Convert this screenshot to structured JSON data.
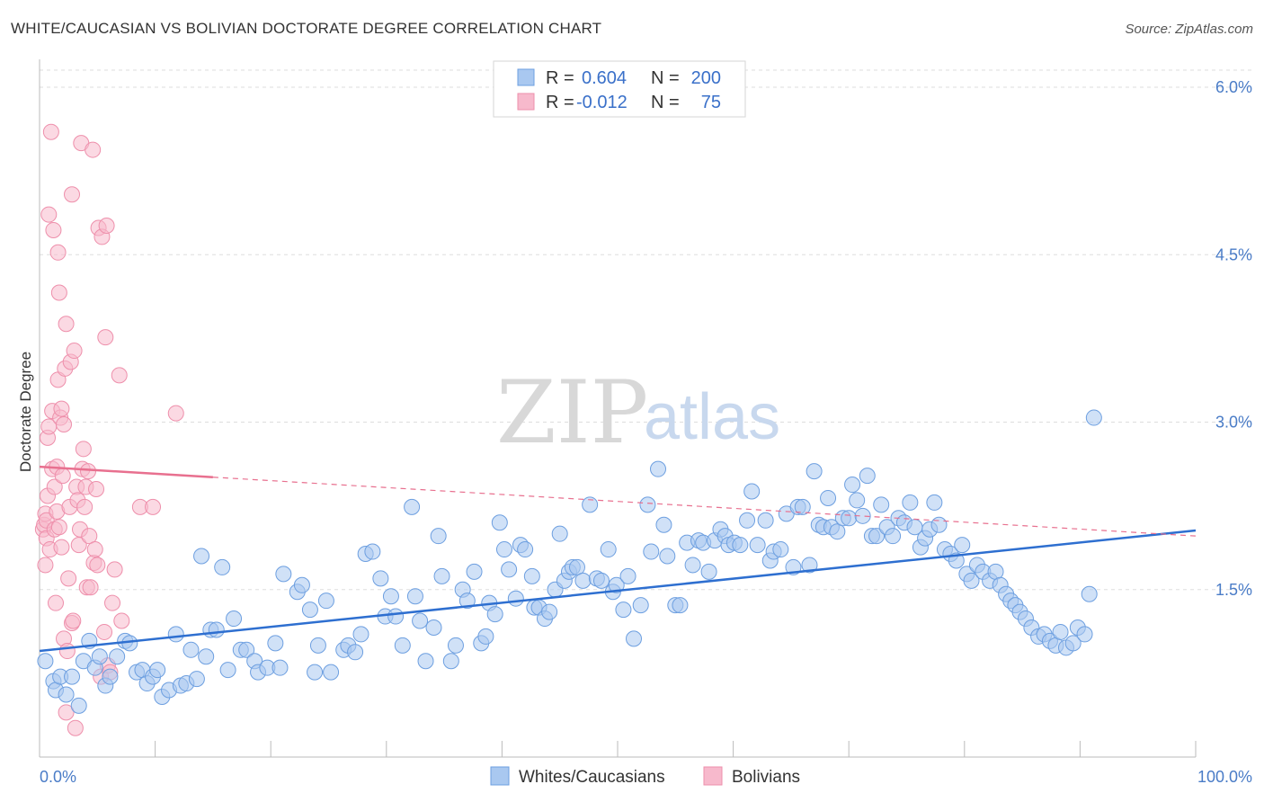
{
  "title": "WHITE/CAUCASIAN VS BOLIVIAN DOCTORATE DEGREE CORRELATION CHART",
  "source": "Source: ZipAtlas.com",
  "watermark": {
    "zip": "ZIP",
    "atlas": "atlas"
  },
  "colors": {
    "blue_fill": "#a9c8f0",
    "blue_stroke": "#6d9fe0",
    "blue_line": "#2e6fd0",
    "pink_fill": "#f7b9cc",
    "pink_stroke": "#ee8fab",
    "pink_line": "#e8708f",
    "grid": "#dddddd",
    "axis_label": "#4a7cc7"
  },
  "legend": {
    "rows": [
      {
        "r_label": "R =",
        "r_value": "0.604",
        "n_label": "N =",
        "n_value": "200",
        "series": "Whites/Caucasians"
      },
      {
        "r_label": "R =",
        "r_value": "-0.012",
        "n_label": "N =",
        "n_value": "75",
        "series": "Bolivians"
      }
    ]
  },
  "chart_data": {
    "type": "scatter",
    "title": "WHITE/CAUCASIAN VS BOLIVIAN DOCTORATE DEGREE CORRELATION CHART",
    "xlabel": "",
    "ylabel": "Doctorate Degree",
    "xlim": [
      0,
      100
    ],
    "ylim": [
      0,
      6.25
    ],
    "x_tick_labels": [
      "0.0%",
      "100.0%"
    ],
    "y_ticks": [
      1.5,
      3.0,
      4.5,
      6.0
    ],
    "y_tick_labels": [
      "1.5%",
      "3.0%",
      "4.5%",
      "6.0%"
    ],
    "grid": true,
    "series": [
      {
        "name": "Whites/Caucasians",
        "trend": {
          "x": [
            0,
            100
          ],
          "y": [
            0.95,
            2.03
          ]
        },
        "points": [
          [
            0.5,
            0.86
          ],
          [
            1.2,
            0.68
          ],
          [
            1.4,
            0.6
          ],
          [
            1.8,
            0.72
          ],
          [
            2.3,
            0.56
          ],
          [
            2.8,
            0.72
          ],
          [
            3.4,
            0.46
          ],
          [
            3.8,
            0.86
          ],
          [
            4.3,
            1.04
          ],
          [
            4.8,
            0.8
          ],
          [
            5.2,
            0.9
          ],
          [
            5.7,
            0.64
          ],
          [
            6.1,
            0.72
          ],
          [
            6.7,
            0.9
          ],
          [
            7.4,
            1.04
          ],
          [
            7.8,
            1.02
          ],
          [
            8.4,
            0.76
          ],
          [
            8.9,
            0.78
          ],
          [
            9.3,
            0.66
          ],
          [
            9.8,
            0.72
          ],
          [
            10.2,
            0.78
          ],
          [
            10.6,
            0.54
          ],
          [
            11.2,
            0.6
          ],
          [
            11.8,
            1.1
          ],
          [
            12.2,
            0.64
          ],
          [
            12.7,
            0.66
          ],
          [
            13.1,
            0.96
          ],
          [
            13.6,
            0.7
          ],
          [
            14.0,
            1.8
          ],
          [
            14.4,
            0.9
          ],
          [
            14.8,
            1.14
          ],
          [
            15.3,
            1.14
          ],
          [
            15.8,
            1.7
          ],
          [
            16.3,
            0.78
          ],
          [
            16.8,
            1.24
          ],
          [
            17.4,
            0.96
          ],
          [
            17.9,
            0.96
          ],
          [
            18.6,
            0.86
          ],
          [
            18.9,
            0.76
          ],
          [
            19.7,
            0.8
          ],
          [
            20.4,
            1.02
          ],
          [
            20.8,
            0.8
          ],
          [
            21.1,
            1.64
          ],
          [
            22.3,
            1.48
          ],
          [
            22.7,
            1.54
          ],
          [
            23.4,
            1.32
          ],
          [
            23.8,
            0.76
          ],
          [
            24.1,
            1.0
          ],
          [
            24.8,
            1.4
          ],
          [
            25.2,
            0.76
          ],
          [
            26.3,
            0.96
          ],
          [
            26.7,
            1.0
          ],
          [
            27.3,
            0.94
          ],
          [
            27.8,
            1.1
          ],
          [
            28.2,
            1.82
          ],
          [
            28.8,
            1.84
          ],
          [
            29.5,
            1.6
          ],
          [
            29.9,
            1.26
          ],
          [
            30.4,
            1.44
          ],
          [
            30.8,
            1.26
          ],
          [
            31.4,
            1.0
          ],
          [
            32.2,
            2.24
          ],
          [
            32.5,
            1.44
          ],
          [
            32.9,
            1.22
          ],
          [
            33.4,
            0.86
          ],
          [
            34.1,
            1.16
          ],
          [
            34.5,
            1.98
          ],
          [
            34.8,
            1.62
          ],
          [
            35.6,
            0.86
          ],
          [
            36.0,
            1.0
          ],
          [
            36.6,
            1.5
          ],
          [
            37.0,
            1.4
          ],
          [
            37.6,
            1.66
          ],
          [
            38.2,
            1.02
          ],
          [
            38.6,
            1.08
          ],
          [
            38.9,
            1.38
          ],
          [
            39.4,
            1.28
          ],
          [
            39.8,
            2.1
          ],
          [
            40.2,
            1.86
          ],
          [
            40.6,
            1.68
          ],
          [
            41.2,
            1.42
          ],
          [
            41.6,
            1.9
          ],
          [
            42.0,
            1.86
          ],
          [
            42.6,
            1.62
          ],
          [
            42.8,
            1.34
          ],
          [
            43.2,
            1.34
          ],
          [
            43.7,
            1.24
          ],
          [
            44.1,
            1.3
          ],
          [
            44.6,
            1.5
          ],
          [
            45.0,
            2.0
          ],
          [
            45.4,
            1.58
          ],
          [
            45.8,
            1.66
          ],
          [
            46.1,
            1.7
          ],
          [
            46.5,
            1.7
          ],
          [
            47.0,
            1.58
          ],
          [
            47.6,
            2.26
          ],
          [
            48.2,
            1.6
          ],
          [
            48.6,
            1.58
          ],
          [
            49.2,
            1.86
          ],
          [
            49.6,
            1.48
          ],
          [
            49.9,
            1.54
          ],
          [
            50.5,
            1.32
          ],
          [
            50.9,
            1.62
          ],
          [
            51.4,
            1.06
          ],
          [
            52.0,
            1.36
          ],
          [
            52.6,
            2.26
          ],
          [
            52.9,
            1.84
          ],
          [
            53.5,
            2.58
          ],
          [
            54.0,
            2.08
          ],
          [
            54.3,
            1.8
          ],
          [
            55.0,
            1.36
          ],
          [
            55.4,
            1.36
          ],
          [
            56.0,
            1.92
          ],
          [
            56.5,
            1.72
          ],
          [
            57.0,
            1.94
          ],
          [
            57.4,
            1.92
          ],
          [
            57.9,
            1.66
          ],
          [
            58.4,
            1.94
          ],
          [
            58.9,
            2.04
          ],
          [
            59.3,
            1.98
          ],
          [
            59.6,
            1.9
          ],
          [
            60.1,
            1.92
          ],
          [
            60.6,
            1.9
          ],
          [
            61.2,
            2.12
          ],
          [
            61.6,
            2.38
          ],
          [
            62.1,
            1.9
          ],
          [
            62.8,
            2.12
          ],
          [
            63.2,
            1.76
          ],
          [
            63.5,
            1.84
          ],
          [
            64.1,
            1.86
          ],
          [
            64.6,
            2.18
          ],
          [
            65.2,
            1.7
          ],
          [
            65.6,
            2.24
          ],
          [
            66.0,
            2.24
          ],
          [
            66.6,
            1.72
          ],
          [
            67.0,
            2.56
          ],
          [
            67.4,
            2.08
          ],
          [
            67.8,
            2.06
          ],
          [
            68.2,
            2.32
          ],
          [
            68.5,
            2.06
          ],
          [
            69.0,
            2.02
          ],
          [
            69.5,
            2.14
          ],
          [
            70.0,
            2.14
          ],
          [
            70.3,
            2.44
          ],
          [
            70.7,
            2.3
          ],
          [
            71.2,
            2.16
          ],
          [
            71.6,
            2.52
          ],
          [
            72.0,
            1.98
          ],
          [
            72.4,
            1.98
          ],
          [
            72.8,
            2.26
          ],
          [
            73.3,
            2.06
          ],
          [
            73.8,
            1.98
          ],
          [
            74.3,
            2.14
          ],
          [
            74.8,
            2.1
          ],
          [
            75.3,
            2.28
          ],
          [
            75.7,
            2.06
          ],
          [
            76.2,
            1.88
          ],
          [
            76.6,
            1.96
          ],
          [
            77.0,
            2.04
          ],
          [
            77.4,
            2.28
          ],
          [
            77.8,
            2.08
          ],
          [
            78.3,
            1.86
          ],
          [
            78.8,
            1.82
          ],
          [
            79.3,
            1.76
          ],
          [
            79.8,
            1.9
          ],
          [
            80.2,
            1.64
          ],
          [
            80.6,
            1.58
          ],
          [
            81.1,
            1.72
          ],
          [
            81.6,
            1.66
          ],
          [
            82.2,
            1.58
          ],
          [
            82.7,
            1.66
          ],
          [
            83.1,
            1.54
          ],
          [
            83.6,
            1.46
          ],
          [
            84.0,
            1.4
          ],
          [
            84.4,
            1.36
          ],
          [
            84.8,
            1.3
          ],
          [
            85.3,
            1.24
          ],
          [
            85.8,
            1.16
          ],
          [
            86.4,
            1.08
          ],
          [
            86.9,
            1.1
          ],
          [
            87.4,
            1.04
          ],
          [
            87.9,
            1.0
          ],
          [
            88.3,
            1.12
          ],
          [
            88.8,
            0.98
          ],
          [
            89.4,
            1.02
          ],
          [
            89.8,
            1.16
          ],
          [
            90.4,
            1.1
          ],
          [
            90.8,
            1.46
          ],
          [
            91.2,
            3.04
          ]
        ]
      },
      {
        "name": "Bolivians",
        "trend": {
          "x": [
            0,
            100
          ],
          "y": [
            2.6,
            1.98
          ],
          "solid_until_x": 15
        },
        "points": [
          [
            0.3,
            2.04
          ],
          [
            0.4,
            2.08
          ],
          [
            0.5,
            2.18
          ],
          [
            0.5,
            1.72
          ],
          [
            0.6,
            2.12
          ],
          [
            0.6,
            1.96
          ],
          [
            0.7,
            2.34
          ],
          [
            0.7,
            2.86
          ],
          [
            0.8,
            2.96
          ],
          [
            0.8,
            4.86
          ],
          [
            0.9,
            1.86
          ],
          [
            1.0,
            5.6
          ],
          [
            1.1,
            2.58
          ],
          [
            1.1,
            3.1
          ],
          [
            1.2,
            4.72
          ],
          [
            1.3,
            2.42
          ],
          [
            1.3,
            2.04
          ],
          [
            1.4,
            1.38
          ],
          [
            1.5,
            2.2
          ],
          [
            1.5,
            2.6
          ],
          [
            1.6,
            3.38
          ],
          [
            1.6,
            4.52
          ],
          [
            1.7,
            2.06
          ],
          [
            1.7,
            4.16
          ],
          [
            1.8,
            3.04
          ],
          [
            1.9,
            1.88
          ],
          [
            1.9,
            3.12
          ],
          [
            2.0,
            2.52
          ],
          [
            2.1,
            1.06
          ],
          [
            2.1,
            2.98
          ],
          [
            2.2,
            3.48
          ],
          [
            2.3,
            3.88
          ],
          [
            2.3,
            0.4
          ],
          [
            2.4,
            0.95
          ],
          [
            2.5,
            1.6
          ],
          [
            2.6,
            2.24
          ],
          [
            2.7,
            3.54
          ],
          [
            2.8,
            1.2
          ],
          [
            2.8,
            5.04
          ],
          [
            2.9,
            1.22
          ],
          [
            3.0,
            3.64
          ],
          [
            3.1,
            0.26
          ],
          [
            3.2,
            2.42
          ],
          [
            3.3,
            2.3
          ],
          [
            3.4,
            1.9
          ],
          [
            3.5,
            2.04
          ],
          [
            3.6,
            5.5
          ],
          [
            3.7,
            2.58
          ],
          [
            3.8,
            2.76
          ],
          [
            3.9,
            2.24
          ],
          [
            4.0,
            2.42
          ],
          [
            4.1,
            1.52
          ],
          [
            4.2,
            2.56
          ],
          [
            4.3,
            1.98
          ],
          [
            4.4,
            1.52
          ],
          [
            4.6,
            5.44
          ],
          [
            4.7,
            1.74
          ],
          [
            4.8,
            1.86
          ],
          [
            4.9,
            2.4
          ],
          [
            5.0,
            1.72
          ],
          [
            5.1,
            4.74
          ],
          [
            5.3,
            0.72
          ],
          [
            5.4,
            4.66
          ],
          [
            5.6,
            1.12
          ],
          [
            5.7,
            3.76
          ],
          [
            5.8,
            4.76
          ],
          [
            5.9,
            0.82
          ],
          [
            6.1,
            0.76
          ],
          [
            6.3,
            1.38
          ],
          [
            6.5,
            1.68
          ],
          [
            6.9,
            3.42
          ],
          [
            7.1,
            1.22
          ],
          [
            8.7,
            2.24
          ],
          [
            9.8,
            2.24
          ],
          [
            11.8,
            3.08
          ]
        ]
      }
    ]
  },
  "y_axis_title": "Doctorate Degree",
  "bottom_legend": [
    {
      "label": "Whites/Caucasians",
      "series": "blue"
    },
    {
      "label": "Bolivians",
      "series": "pink"
    }
  ]
}
